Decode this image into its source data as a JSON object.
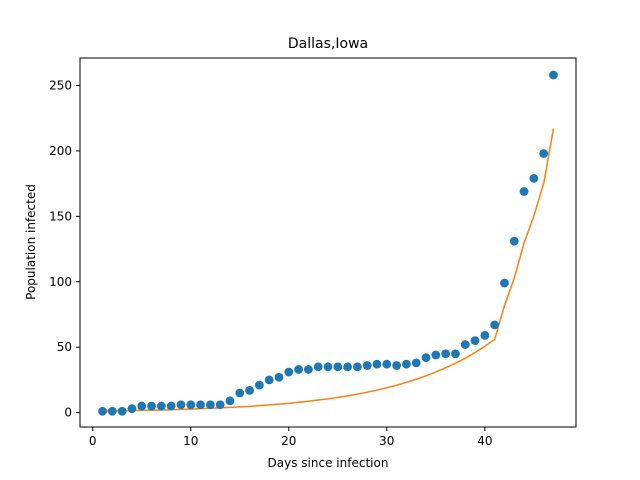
{
  "chart_data": {
    "type": "scatter",
    "title": "Dallas,Iowa",
    "xlabel": "Days since infection",
    "ylabel": "Population infected",
    "xlim": [
      -1.3,
      49.3
    ],
    "ylim": [
      -11,
      271
    ],
    "xticks": [
      0,
      10,
      20,
      30,
      40
    ],
    "yticks": [
      0,
      50,
      100,
      150,
      200,
      250
    ],
    "grid": false,
    "colors": {
      "points": "#1f77b4",
      "fit": "#ff7f0e"
    },
    "series": [
      {
        "type": "scatter",
        "x": [
          1,
          2,
          3,
          4,
          5,
          6,
          7,
          8,
          9,
          10,
          11,
          12,
          13,
          14,
          15,
          16,
          17,
          18,
          19,
          20,
          21,
          22,
          23,
          24,
          25,
          26,
          27,
          28,
          29,
          30,
          31,
          32,
          33,
          34,
          35,
          36,
          37,
          38,
          39,
          40,
          41,
          42,
          43,
          44,
          45,
          46,
          47
        ],
        "y": [
          1,
          1,
          1,
          3,
          5,
          5,
          5,
          5,
          6,
          6,
          6,
          6,
          6,
          9,
          15,
          17,
          21,
          25,
          27,
          31,
          33,
          33,
          35,
          35,
          35,
          35,
          35,
          36,
          37,
          37,
          36,
          37,
          38,
          42,
          44,
          45,
          45,
          52,
          55,
          59,
          67,
          99,
          131,
          169,
          179,
          198,
          258
        ]
      },
      {
        "type": "line",
        "x": [
          1,
          2,
          3,
          4,
          5,
          6,
          7,
          8,
          9,
          10,
          11,
          12,
          13,
          14,
          15,
          16,
          17,
          18,
          19,
          20,
          21,
          22,
          23,
          24,
          25,
          26,
          27,
          28,
          29,
          30,
          31,
          32,
          33,
          34,
          35,
          36,
          37,
          38,
          39,
          40,
          41,
          42,
          43,
          44,
          45,
          46,
          47
        ],
        "y": [
          1.2,
          1.3,
          1.4,
          1.5,
          1.7,
          1.8,
          2.0,
          2.2,
          2.5,
          2.7,
          3.0,
          3.3,
          3.6,
          4.0,
          4.4,
          4.8,
          5.3,
          5.9,
          6.5,
          7.1,
          7.9,
          8.7,
          9.6,
          10.5,
          11.6,
          12.8,
          14.1,
          15.6,
          17.2,
          19.0,
          20.9,
          23.1,
          25.5,
          28.1,
          31.0,
          34.2,
          37.7,
          41.6,
          45.9,
          50.7,
          55.9,
          81.6,
          102.8,
          129.5,
          150.2,
          175.0,
          217.0
        ]
      }
    ]
  }
}
